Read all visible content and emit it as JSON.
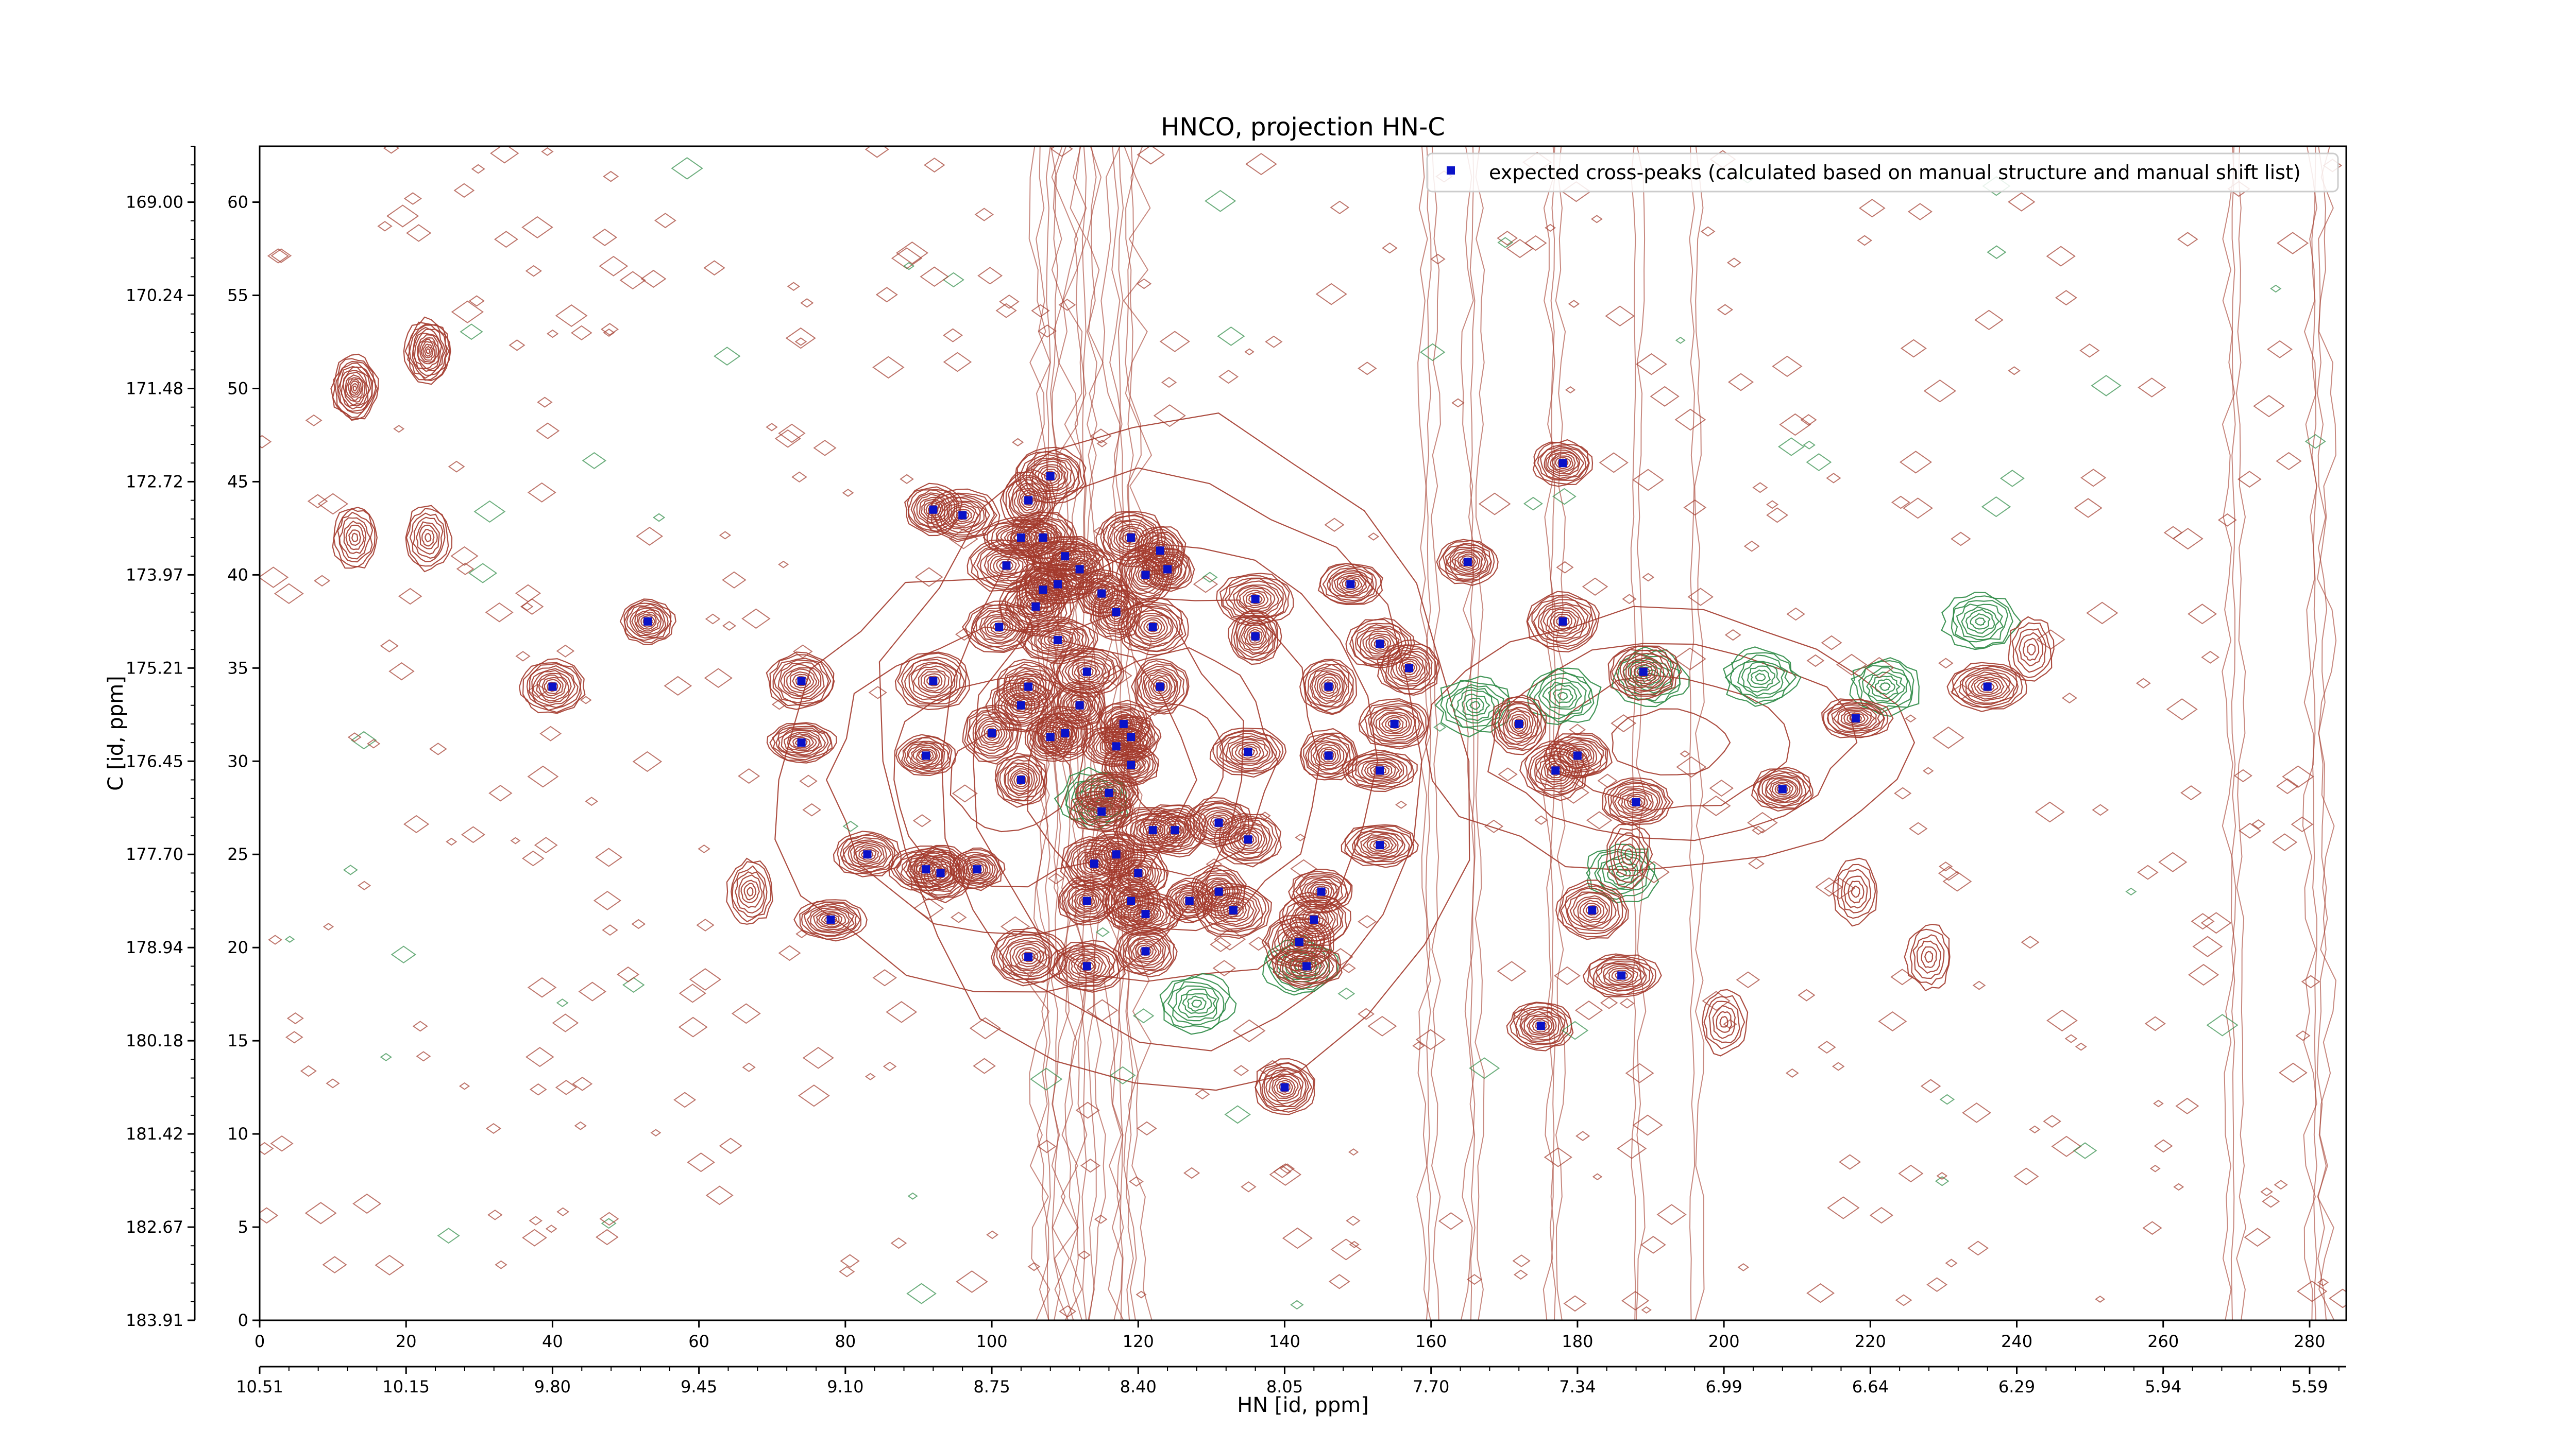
{
  "chart_data": {
    "type": "scatter",
    "title": "HNCO, projection HN-C",
    "xlabel": "HN [id, ppm]",
    "ylabel": "C [id, ppm]",
    "x_index_ticks": [
      "0",
      "20",
      "40",
      "60",
      "80",
      "100",
      "120",
      "140",
      "160",
      "180",
      "200",
      "220",
      "240",
      "260",
      "280"
    ],
    "x_ppm_ticks": [
      "10.51",
      "10.15",
      "9.80",
      "9.45",
      "9.10",
      "8.75",
      "8.40",
      "8.05",
      "7.70",
      "7.34",
      "6.99",
      "6.64",
      "6.29",
      "5.94",
      "5.59"
    ],
    "y_index_ticks": [
      "0",
      "5",
      "10",
      "15",
      "20",
      "25",
      "30",
      "35",
      "40",
      "45",
      "50",
      "55",
      "60"
    ],
    "y_ppm_ticks": [
      "183.91",
      "182.67",
      "181.42",
      "180.18",
      "178.94",
      "177.70",
      "176.45",
      "175.21",
      "173.97",
      "172.72",
      "171.48",
      "170.24",
      "169.00"
    ],
    "xlim": [
      0,
      285
    ],
    "ylim": [
      0,
      63
    ],
    "legend": {
      "location": "top-right",
      "entries": [
        {
          "label": "expected cross-peaks (calculated based on manual structure and manual shift list)",
          "color": "#0a12c8",
          "marker": "square"
        }
      ]
    },
    "contour_colors": {
      "positive": "#a33a2c",
      "negative": "#2e8b46"
    },
    "points": [
      {
        "x": 40,
        "y": 34
      },
      {
        "x": 53,
        "y": 37.5
      },
      {
        "x": 74,
        "y": 34.3
      },
      {
        "x": 74,
        "y": 31
      },
      {
        "x": 83,
        "y": 25
      },
      {
        "x": 78,
        "y": 21.5
      },
      {
        "x": 92,
        "y": 43.5
      },
      {
        "x": 96,
        "y": 43.2
      },
      {
        "x": 92,
        "y": 34.3
      },
      {
        "x": 91,
        "y": 30.3
      },
      {
        "x": 91,
        "y": 24.2
      },
      {
        "x": 93,
        "y": 24
      },
      {
        "x": 98,
        "y": 24.2
      },
      {
        "x": 101,
        "y": 37.2
      },
      {
        "x": 102,
        "y": 40.5
      },
      {
        "x": 100,
        "y": 31.5
      },
      {
        "x": 105,
        "y": 44
      },
      {
        "x": 108,
        "y": 45.3
      },
      {
        "x": 104,
        "y": 42
      },
      {
        "x": 107,
        "y": 42
      },
      {
        "x": 110,
        "y": 41
      },
      {
        "x": 112,
        "y": 40.3
      },
      {
        "x": 109,
        "y": 39.5
      },
      {
        "x": 107,
        "y": 39.2
      },
      {
        "x": 106,
        "y": 38.3
      },
      {
        "x": 109,
        "y": 36.5
      },
      {
        "x": 105,
        "y": 34
      },
      {
        "x": 104,
        "y": 33
      },
      {
        "x": 110,
        "y": 31.5
      },
      {
        "x": 108,
        "y": 31.3
      },
      {
        "x": 104,
        "y": 29
      },
      {
        "x": 113,
        "y": 34.8
      },
      {
        "x": 112,
        "y": 33
      },
      {
        "x": 115,
        "y": 39
      },
      {
        "x": 117,
        "y": 38
      },
      {
        "x": 119,
        "y": 42
      },
      {
        "x": 121,
        "y": 40
      },
      {
        "x": 123,
        "y": 41.3
      },
      {
        "x": 124,
        "y": 40.3
      },
      {
        "x": 122,
        "y": 37.2
      },
      {
        "x": 123,
        "y": 34
      },
      {
        "x": 118,
        "y": 32
      },
      {
        "x": 119,
        "y": 31.3
      },
      {
        "x": 117,
        "y": 30.8
      },
      {
        "x": 119,
        "y": 29.8
      },
      {
        "x": 116,
        "y": 28.3
      },
      {
        "x": 115,
        "y": 27.3
      },
      {
        "x": 117,
        "y": 25
      },
      {
        "x": 114,
        "y": 24.5
      },
      {
        "x": 120,
        "y": 24
      },
      {
        "x": 122,
        "y": 26.3
      },
      {
        "x": 125,
        "y": 26.3
      },
      {
        "x": 113,
        "y": 22.5
      },
      {
        "x": 119,
        "y": 22.5
      },
      {
        "x": 121,
        "y": 21.8
      },
      {
        "x": 105,
        "y": 19.5
      },
      {
        "x": 113,
        "y": 19
      },
      {
        "x": 121,
        "y": 19.8
      },
      {
        "x": 127,
        "y": 22.5
      },
      {
        "x": 131,
        "y": 26.7
      },
      {
        "x": 131,
        "y": 23
      },
      {
        "x": 133,
        "y": 22
      },
      {
        "x": 135,
        "y": 25.8
      },
      {
        "x": 135,
        "y": 30.5
      },
      {
        "x": 136,
        "y": 36.7
      },
      {
        "x": 136,
        "y": 38.7
      },
      {
        "x": 140,
        "y": 12.5
      },
      {
        "x": 142,
        "y": 20.3
      },
      {
        "x": 143,
        "y": 19
      },
      {
        "x": 144,
        "y": 21.5
      },
      {
        "x": 145,
        "y": 23
      },
      {
        "x": 146,
        "y": 30.3
      },
      {
        "x": 146,
        "y": 34
      },
      {
        "x": 149,
        "y": 39.5
      },
      {
        "x": 153,
        "y": 29.5
      },
      {
        "x": 153,
        "y": 25.5
      },
      {
        "x": 153,
        "y": 36.3
      },
      {
        "x": 155,
        "y": 32
      },
      {
        "x": 157,
        "y": 35
      },
      {
        "x": 165,
        "y": 40.7
      },
      {
        "x": 172,
        "y": 32
      },
      {
        "x": 175,
        "y": 15.8
      },
      {
        "x": 177,
        "y": 29.5
      },
      {
        "x": 178,
        "y": 46
      },
      {
        "x": 178,
        "y": 37.5
      },
      {
        "x": 180,
        "y": 30.3
      },
      {
        "x": 182,
        "y": 22
      },
      {
        "x": 186,
        "y": 18.5
      },
      {
        "x": 188,
        "y": 27.8
      },
      {
        "x": 189,
        "y": 34.8
      },
      {
        "x": 208,
        "y": 28.5
      },
      {
        "x": 218,
        "y": 32.3
      },
      {
        "x": 236,
        "y": 34
      }
    ]
  }
}
